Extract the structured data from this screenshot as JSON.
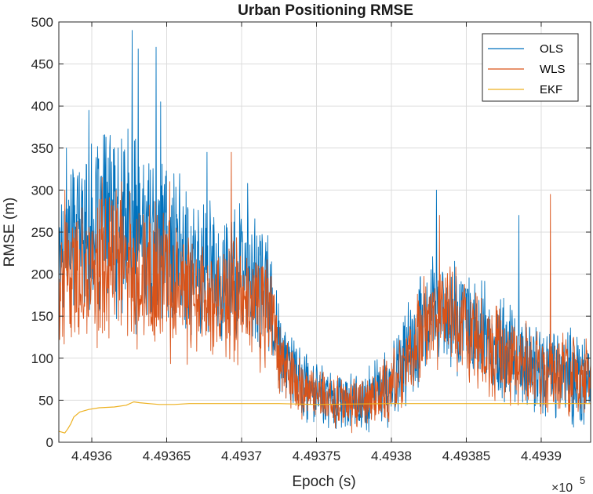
{
  "chart_data": {
    "type": "line",
    "title": "Urban Positioning RMSE",
    "xlabel": "Epoch (s)",
    "ylabel": "RMSE (m)",
    "x_exponent_label": "×10",
    "x_exponent_power": "5",
    "xlim": [
      449357.8,
      449393.3
    ],
    "ylim": [
      0,
      500
    ],
    "x_ticks": [
      449360,
      449365,
      449370,
      449375,
      449380,
      449385,
      449390
    ],
    "x_tick_labels": [
      "4.4936",
      "4.49365",
      "4.4937",
      "4.49375",
      "4.4938",
      "4.49385",
      "4.4939"
    ],
    "y_ticks": [
      0,
      50,
      100,
      150,
      200,
      250,
      300,
      350,
      400,
      450,
      500
    ],
    "y_tick_labels": [
      "0",
      "50",
      "100",
      "150",
      "200",
      "250",
      "300",
      "350",
      "400",
      "450",
      "500"
    ],
    "grid": true,
    "legend_position": "top-right",
    "series": [
      {
        "name": "OLS",
        "color": "#0072BD",
        "trend": [
          [
            449357.8,
            230
          ],
          [
            449359,
            260
          ],
          [
            449360,
            250
          ],
          [
            449361,
            270
          ],
          [
            449362,
            260
          ],
          [
            449363,
            250
          ],
          [
            449364,
            240
          ],
          [
            449365,
            230
          ],
          [
            449366,
            220
          ],
          [
            449367,
            210
          ],
          [
            449368,
            200
          ],
          [
            449369,
            195
          ],
          [
            449370,
            200
          ],
          [
            449371,
            190
          ],
          [
            449372,
            170
          ],
          [
            449372.5,
            110
          ],
          [
            449373,
            90
          ],
          [
            449374,
            70
          ],
          [
            449375,
            60
          ],
          [
            449376,
            55
          ],
          [
            449377,
            50
          ],
          [
            449378,
            48
          ],
          [
            449379,
            55
          ],
          [
            449380,
            70
          ],
          [
            449381,
            100
          ],
          [
            449382,
            140
          ],
          [
            449383,
            160
          ],
          [
            449384,
            155
          ],
          [
            449385,
            145
          ],
          [
            449386,
            130
          ],
          [
            449387,
            115
          ],
          [
            449388,
            105
          ],
          [
            449389,
            95
          ],
          [
            449390,
            90
          ],
          [
            449391,
            85
          ],
          [
            449392,
            80
          ],
          [
            449393.3,
            75
          ]
        ],
        "spread": [
          [
            449357.8,
            70
          ],
          [
            449360,
            95
          ],
          [
            449363,
            110
          ],
          [
            449365,
            100
          ],
          [
            449367,
            85
          ],
          [
            449370,
            80
          ],
          [
            449372,
            70
          ],
          [
            449373,
            45
          ],
          [
            449376,
            35
          ],
          [
            449379,
            40
          ],
          [
            449381,
            55
          ],
          [
            449383,
            65
          ],
          [
            449386,
            60
          ],
          [
            449390,
            55
          ],
          [
            449393.3,
            50
          ]
        ],
        "peaks": [
          [
            449358.3,
            350
          ],
          [
            449359.8,
            395
          ],
          [
            449361.2,
            350
          ],
          [
            449362.7,
            490
          ],
          [
            449363.1,
            468
          ],
          [
            449364.3,
            470
          ],
          [
            449364.6,
            405
          ],
          [
            449367.7,
            345
          ],
          [
            449370.4,
            308
          ],
          [
            449383.0,
            300
          ],
          [
            449388.5,
            270
          ]
        ]
      },
      {
        "name": "WLS",
        "color": "#D95319",
        "trend": [
          [
            449357.8,
            185
          ],
          [
            449359,
            200
          ],
          [
            449360,
            200
          ],
          [
            449361,
            215
          ],
          [
            449362,
            215
          ],
          [
            449363,
            210
          ],
          [
            449364,
            200
          ],
          [
            449365,
            190
          ],
          [
            449366,
            180
          ],
          [
            449367,
            175
          ],
          [
            449368,
            170
          ],
          [
            449369,
            170
          ],
          [
            449370,
            175
          ],
          [
            449371,
            165
          ],
          [
            449372,
            150
          ],
          [
            449372.5,
            100
          ],
          [
            449373,
            85
          ],
          [
            449374,
            65
          ],
          [
            449375,
            55
          ],
          [
            449376,
            50
          ],
          [
            449377,
            45
          ],
          [
            449378,
            45
          ],
          [
            449379,
            55
          ],
          [
            449380,
            70
          ],
          [
            449381,
            95
          ],
          [
            449382,
            130
          ],
          [
            449383,
            150
          ],
          [
            449384,
            145
          ],
          [
            449385,
            135
          ],
          [
            449386,
            120
          ],
          [
            449387,
            110
          ],
          [
            449388,
            100
          ],
          [
            449389,
            90
          ],
          [
            449390,
            85
          ],
          [
            449391,
            80
          ],
          [
            449392,
            80
          ],
          [
            449393.3,
            75
          ]
        ],
        "spread": [
          [
            449357.8,
            60
          ],
          [
            449360,
            80
          ],
          [
            449363,
            90
          ],
          [
            449365,
            85
          ],
          [
            449367,
            75
          ],
          [
            449370,
            75
          ],
          [
            449372,
            65
          ],
          [
            449373,
            40
          ],
          [
            449376,
            30
          ],
          [
            449379,
            35
          ],
          [
            449381,
            50
          ],
          [
            449383,
            60
          ],
          [
            449386,
            55
          ],
          [
            449390,
            50
          ],
          [
            449393.3,
            45
          ]
        ],
        "peaks": [
          [
            449358.2,
            300
          ],
          [
            449360.7,
            315
          ],
          [
            449365.2,
            310
          ],
          [
            449369.3,
            345
          ],
          [
            449383.2,
            270
          ],
          [
            449390.6,
            295
          ]
        ]
      },
      {
        "name": "EKF",
        "color": "#EDB120",
        "points": [
          [
            449357.8,
            13
          ],
          [
            449358.0,
            12
          ],
          [
            449358.2,
            11
          ],
          [
            449358.4,
            16
          ],
          [
            449358.6,
            22
          ],
          [
            449358.8,
            30
          ],
          [
            449359.2,
            36
          ],
          [
            449359.8,
            39
          ],
          [
            449360.5,
            41
          ],
          [
            449361.5,
            42
          ],
          [
            449362.3,
            44
          ],
          [
            449362.8,
            48
          ],
          [
            449363.2,
            47
          ],
          [
            449363.8,
            46
          ],
          [
            449364.5,
            45
          ],
          [
            449365.5,
            45
          ],
          [
            449366.5,
            46
          ],
          [
            449367.5,
            46
          ],
          [
            449368.5,
            46
          ],
          [
            449369.5,
            46
          ],
          [
            449370.5,
            46
          ],
          [
            449371.5,
            46
          ],
          [
            449372.5,
            46
          ],
          [
            449375,
            45
          ],
          [
            449380,
            46
          ],
          [
            449385,
            46
          ],
          [
            449390,
            46
          ],
          [
            449393.3,
            46
          ]
        ]
      }
    ]
  }
}
